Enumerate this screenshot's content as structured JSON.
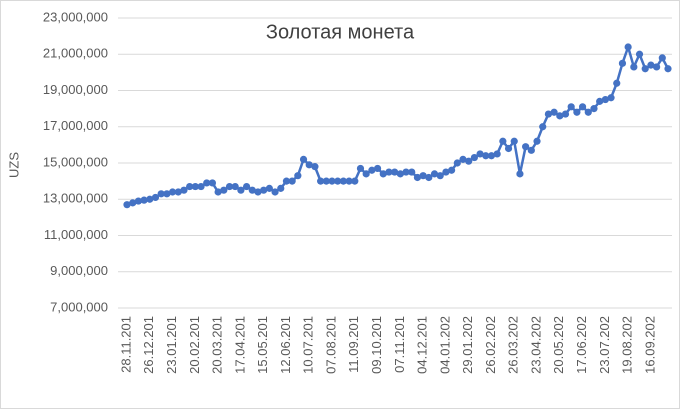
{
  "chart_data": {
    "type": "line",
    "title": "Золотая монета",
    "y_label": "UZS",
    "categories": [
      "28.11.201",
      null,
      null,
      null,
      "26.12.201",
      null,
      null,
      null,
      "23.01.201",
      null,
      null,
      null,
      "20.02.201",
      null,
      null,
      null,
      "20.03.201",
      null,
      null,
      null,
      "17.04.201",
      null,
      null,
      null,
      "15.05.201",
      null,
      null,
      null,
      "12.06.201",
      null,
      null,
      null,
      "10.07.201",
      null,
      null,
      null,
      "07.08.201",
      null,
      null,
      null,
      "11.09.201",
      null,
      null,
      null,
      "09.10.201",
      null,
      null,
      null,
      "07.11.201",
      null,
      null,
      null,
      "04.12.201",
      null,
      null,
      null,
      "04.01.202",
      null,
      null,
      null,
      "29.01.202",
      null,
      null,
      null,
      "26.02.202",
      null,
      null,
      null,
      "26.03.202",
      null,
      null,
      null,
      "23.04.202",
      null,
      null,
      null,
      "20.05.202",
      null,
      null,
      null,
      "17.06.202",
      null,
      null,
      null,
      "23.07.202",
      null,
      null,
      null,
      "19.08.202",
      null,
      null,
      null,
      "16.09.202",
      null,
      null,
      null
    ],
    "series": [
      {
        "name": "Золотая монета",
        "color": "#4472c4",
        "values": [
          12700000,
          12800000,
          12900000,
          12950000,
          13000000,
          13100000,
          13300000,
          13300000,
          13400000,
          13400000,
          13500000,
          13700000,
          13700000,
          13700000,
          13900000,
          13900000,
          13400000,
          13500000,
          13700000,
          13700000,
          13500000,
          13700000,
          13500000,
          13400000,
          13500000,
          13600000,
          13400000,
          13600000,
          14000000,
          14000000,
          14300000,
          15200000,
          14900000,
          14800000,
          14000000,
          14000000,
          14000000,
          14000000,
          14000000,
          14000000,
          14000000,
          14700000,
          14400000,
          14600000,
          14700000,
          14400000,
          14500000,
          14500000,
          14400000,
          14500000,
          14500000,
          14200000,
          14300000,
          14200000,
          14400000,
          14300000,
          14500000,
          14600000,
          15000000,
          15200000,
          15100000,
          15300000,
          15500000,
          15400000,
          15400000,
          15500000,
          16200000,
          15800000,
          16200000,
          14400000,
          15900000,
          15700000,
          16200000,
          17000000,
          17700000,
          17800000,
          17600000,
          17700000,
          18100000,
          17800000,
          18100000,
          17800000,
          18000000,
          18400000,
          18500000,
          18600000,
          19400000,
          20500000,
          21400000,
          20300000,
          21000000,
          20200000,
          20400000,
          20300000,
          20800000,
          20200000
        ]
      }
    ],
    "ylim": [
      7000000,
      23000000
    ],
    "yticks": [
      {
        "value": 7000000,
        "label": "7,000,000"
      },
      {
        "value": 9000000,
        "label": "9,000,000"
      },
      {
        "value": 11000000,
        "label": "11,000,000"
      },
      {
        "value": 13000000,
        "label": "13,000,000"
      },
      {
        "value": 15000000,
        "label": "15,000,000"
      },
      {
        "value": 17000000,
        "label": "17,000,000"
      },
      {
        "value": 19000000,
        "label": "19,000,000"
      },
      {
        "value": 21000000,
        "label": "21,000,000"
      },
      {
        "value": 23000000,
        "label": "23,000,000"
      }
    ],
    "grid": true
  }
}
